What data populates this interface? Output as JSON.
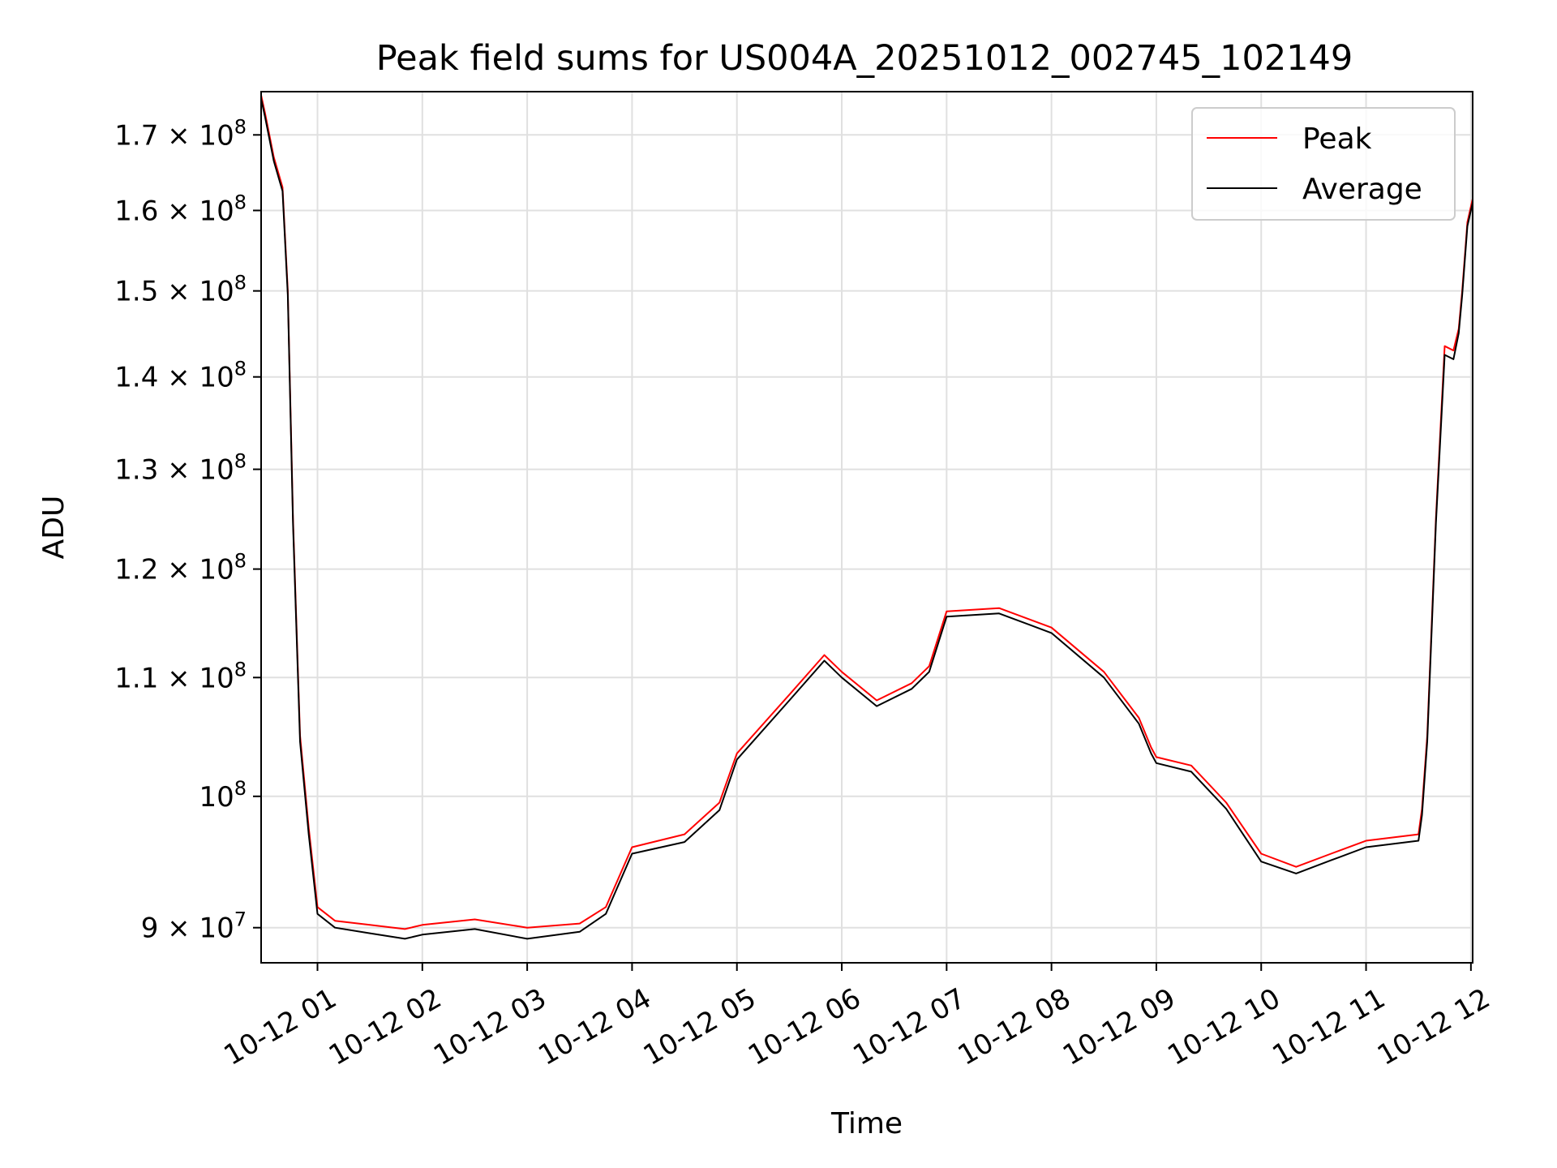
{
  "chart_data": {
    "type": "line",
    "title": "Peak field sums for US004A_20251012_002745_102149",
    "xlabel": "Time",
    "ylabel": "ADU",
    "y_scale": "log",
    "ylim": [
      87500000,
      176000000
    ],
    "xlim": [
      "2025-10-12 00:27:45",
      "2025-10-12 12:01:00"
    ],
    "grid": true,
    "legend_position": "upper right",
    "x_tick_labels": [
      "10-12 01",
      "10-12 02",
      "10-12 03",
      "10-12 04",
      "10-12 05",
      "10-12 06",
      "10-12 07",
      "10-12 08",
      "10-12 09",
      "10-12 10",
      "10-12 11",
      "10-12 12"
    ],
    "x_tick_values": [
      "2025-10-12 01:00",
      "2025-10-12 02:00",
      "2025-10-12 03:00",
      "2025-10-12 04:00",
      "2025-10-12 05:00",
      "2025-10-12 06:00",
      "2025-10-12 07:00",
      "2025-10-12 08:00",
      "2025-10-12 09:00",
      "2025-10-12 10:00",
      "2025-10-12 11:00",
      "2025-10-12 12:00"
    ],
    "y_ticks": [
      {
        "value": 90000000,
        "mantissa": "9",
        "exp": "7"
      },
      {
        "value": 100000000,
        "mantissa": "",
        "exp": "8"
      },
      {
        "value": 110000000,
        "mantissa": "1.1",
        "exp": "8"
      },
      {
        "value": 120000000,
        "mantissa": "1.2",
        "exp": "8"
      },
      {
        "value": 130000000,
        "mantissa": "1.3",
        "exp": "8"
      },
      {
        "value": 140000000,
        "mantissa": "1.4",
        "exp": "8"
      },
      {
        "value": 150000000,
        "mantissa": "1.5",
        "exp": "8"
      },
      {
        "value": 160000000,
        "mantissa": "1.6",
        "exp": "8"
      },
      {
        "value": 170000000,
        "mantissa": "1.7",
        "exp": "8"
      }
    ],
    "series": [
      {
        "name": "Peak",
        "color": "#ff0000",
        "x": [
          "2025-10-12 00:27:45",
          "2025-10-12 00:30",
          "2025-10-12 00:35",
          "2025-10-12 00:40",
          "2025-10-12 00:43",
          "2025-10-12 00:46",
          "2025-10-12 00:50",
          "2025-10-12 00:55",
          "2025-10-12 01:00",
          "2025-10-12 01:10",
          "2025-10-12 01:30",
          "2025-10-12 01:50",
          "2025-10-12 02:00",
          "2025-10-12 02:30",
          "2025-10-12 03:00",
          "2025-10-12 03:30",
          "2025-10-12 03:45",
          "2025-10-12 04:00",
          "2025-10-12 04:30",
          "2025-10-12 04:50",
          "2025-10-12 05:00",
          "2025-10-12 05:30",
          "2025-10-12 05:50",
          "2025-10-12 06:00",
          "2025-10-12 06:20",
          "2025-10-12 06:40",
          "2025-10-12 06:50",
          "2025-10-12 07:00",
          "2025-10-12 07:30",
          "2025-10-12 08:00",
          "2025-10-12 08:30",
          "2025-10-12 08:50",
          "2025-10-12 08:57",
          "2025-10-12 09:00",
          "2025-10-12 09:20",
          "2025-10-12 09:40",
          "2025-10-12 10:00",
          "2025-10-12 10:20",
          "2025-10-12 10:40",
          "2025-10-12 11:00",
          "2025-10-12 11:30",
          "2025-10-12 11:32",
          "2025-10-12 11:35",
          "2025-10-12 11:40",
          "2025-10-12 11:45",
          "2025-10-12 11:50",
          "2025-10-12 11:53",
          "2025-10-12 11:55",
          "2025-10-12 11:58",
          "2025-10-12 12:01"
        ],
        "values": [
          175500000,
          173000000,
          167000000,
          163000000,
          150000000,
          125000000,
          105000000,
          97500000,
          91500000,
          90500000,
          90200000,
          89900000,
          90200000,
          90600000,
          90000000,
          90300000,
          91500000,
          96000000,
          97000000,
          99500000,
          103500000,
          108500000,
          112000000,
          110500000,
          108000000,
          109500000,
          111000000,
          116000000,
          116300000,
          114500000,
          110500000,
          106500000,
          104000000,
          103200000,
          102500000,
          99500000,
          95500000,
          94500000,
          95500000,
          96500000,
          97000000,
          99000000,
          105000000,
          125000000,
          143500000,
          143000000,
          145500000,
          150000000,
          158500000,
          161500000
        ]
      },
      {
        "name": "Average",
        "color": "#000000",
        "x": [
          "2025-10-12 00:27:45",
          "2025-10-12 00:30",
          "2025-10-12 00:35",
          "2025-10-12 00:40",
          "2025-10-12 00:43",
          "2025-10-12 00:46",
          "2025-10-12 00:50",
          "2025-10-12 00:55",
          "2025-10-12 01:00",
          "2025-10-12 01:10",
          "2025-10-12 01:30",
          "2025-10-12 01:50",
          "2025-10-12 02:00",
          "2025-10-12 02:30",
          "2025-10-12 03:00",
          "2025-10-12 03:30",
          "2025-10-12 03:45",
          "2025-10-12 04:00",
          "2025-10-12 04:30",
          "2025-10-12 04:50",
          "2025-10-12 05:00",
          "2025-10-12 05:30",
          "2025-10-12 05:50",
          "2025-10-12 06:00",
          "2025-10-12 06:20",
          "2025-10-12 06:40",
          "2025-10-12 06:50",
          "2025-10-12 07:00",
          "2025-10-12 07:30",
          "2025-10-12 08:00",
          "2025-10-12 08:30",
          "2025-10-12 08:50",
          "2025-10-12 08:57",
          "2025-10-12 09:00",
          "2025-10-12 09:20",
          "2025-10-12 09:40",
          "2025-10-12 10:00",
          "2025-10-12 10:20",
          "2025-10-12 10:40",
          "2025-10-12 11:00",
          "2025-10-12 11:30",
          "2025-10-12 11:32",
          "2025-10-12 11:35",
          "2025-10-12 11:40",
          "2025-10-12 11:45",
          "2025-10-12 11:50",
          "2025-10-12 11:53",
          "2025-10-12 11:55",
          "2025-10-12 11:58",
          "2025-10-12 12:01"
        ],
        "values": [
          175000000,
          172500000,
          166500000,
          162500000,
          149500000,
          124500000,
          104500000,
          97000000,
          91000000,
          90000000,
          89600000,
          89200000,
          89500000,
          89900000,
          89200000,
          89700000,
          91000000,
          95500000,
          96400000,
          98900000,
          103000000,
          108000000,
          111500000,
          110000000,
          107500000,
          109000000,
          110500000,
          115500000,
          115800000,
          114000000,
          110000000,
          106000000,
          103500000,
          102700000,
          102000000,
          99000000,
          94900000,
          94000000,
          95000000,
          96000000,
          96500000,
          98500000,
          104500000,
          124500000,
          142500000,
          142000000,
          145000000,
          149500000,
          158000000,
          161000000
        ]
      }
    ]
  }
}
